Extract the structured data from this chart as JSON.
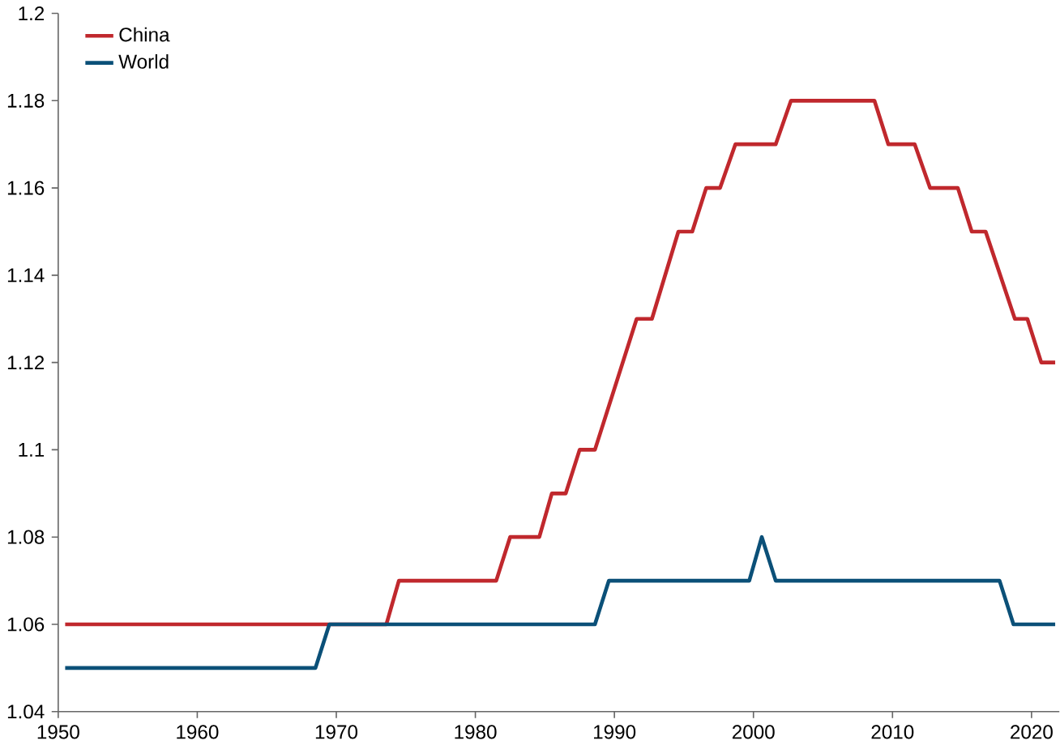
{
  "chart_data": {
    "type": "line",
    "xlim": [
      1950,
      2022
    ],
    "xticks": [
      1950,
      1960,
      1970,
      1980,
      1990,
      2000,
      2010,
      2020
    ],
    "ylim": [
      1.04,
      1.2
    ],
    "yticks": [
      1.04,
      1.06,
      1.08,
      1.1,
      1.12,
      1.14,
      1.16,
      1.18,
      1.2
    ],
    "grid": false,
    "legend": "top left",
    "marker": "none",
    "line_style": "solid",
    "series": [
      {
        "name": "China",
        "color": "#c0282d",
        "x": [
          1950.5,
          1973.6,
          1974.5,
          1981.5,
          1982.5,
          1984.6,
          1985.5,
          1986.5,
          1987.5,
          1988.6,
          1991.6,
          1992.7,
          1994.6,
          1995.6,
          1996.6,
          1997.6,
          1998.7,
          2001.6,
          2002.7,
          2008.7,
          2009.7,
          2011.6,
          2012.7,
          2014.7,
          2015.7,
          2016.7,
          2018.8,
          2019.7,
          2020.7,
          2021.7
        ],
        "values": [
          1.06,
          1.06,
          1.07,
          1.07,
          1.08,
          1.08,
          1.09,
          1.09,
          1.1,
          1.1,
          1.13,
          1.13,
          1.15,
          1.15,
          1.16,
          1.16,
          1.17,
          1.17,
          1.18,
          1.18,
          1.17,
          1.17,
          1.16,
          1.16,
          1.15,
          1.15,
          1.13,
          1.13,
          1.12,
          1.12
        ]
      },
      {
        "name": "World",
        "color": "#0b5078",
        "x": [
          1950.5,
          1968.5,
          1969.5,
          1988.6,
          1989.6,
          1999.7,
          2000.6,
          2001.6,
          2017.7,
          2018.7,
          2021.7
        ],
        "values": [
          1.05,
          1.05,
          1.06,
          1.06,
          1.07,
          1.07,
          1.08,
          1.07,
          1.07,
          1.06,
          1.06
        ]
      }
    ]
  }
}
